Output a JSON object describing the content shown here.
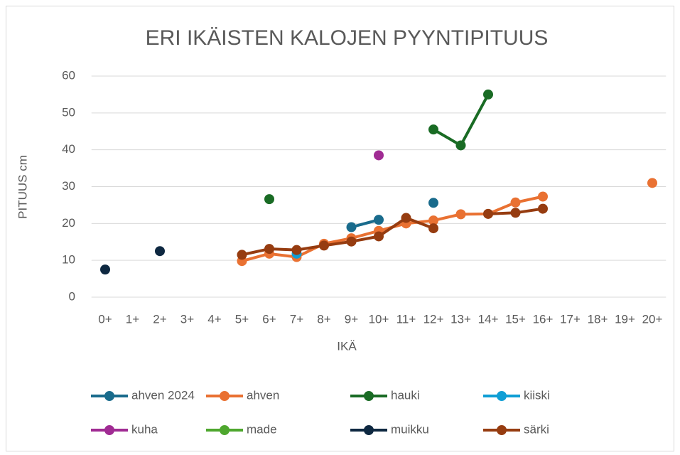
{
  "chart_data": {
    "type": "line",
    "title": "ERI IKÄISTEN KALOJEN PYYNTIPITUUS",
    "x_label": "IKÄ",
    "y_label": "PITUUS cm",
    "categories": [
      "0+",
      "1+",
      "2+",
      "3+",
      "4+",
      "5+",
      "6+",
      "7+",
      "8+",
      "9+",
      "10+",
      "11+",
      "12+",
      "13+",
      "14+",
      "15+",
      "16+",
      "17+",
      "18+",
      "19+",
      "20+"
    ],
    "ylim": [
      0,
      60
    ],
    "yticks": [
      0,
      10,
      20,
      30,
      40,
      50,
      60
    ],
    "grid": true,
    "legend": "bottom",
    "series": [
      {
        "name": "ahven 2024",
        "color": "#196b8c",
        "values": [
          null,
          null,
          null,
          null,
          null,
          null,
          null,
          null,
          null,
          19,
          21,
          null,
          25.6,
          null,
          null,
          null,
          null,
          null,
          null,
          null,
          null
        ]
      },
      {
        "name": "ahven",
        "color": "#e97132",
        "values": [
          null,
          null,
          null,
          null,
          null,
          9.8,
          11.8,
          10.9,
          14.5,
          16,
          18,
          20,
          20.8,
          22.5,
          22.6,
          25.7,
          27.3,
          null,
          null,
          null,
          31
        ]
      },
      {
        "name": "hauki",
        "color": "#196b24",
        "values": [
          null,
          null,
          null,
          null,
          null,
          null,
          26.6,
          null,
          null,
          null,
          null,
          null,
          45.5,
          41.2,
          55,
          null,
          null,
          null,
          null,
          null,
          null
        ]
      },
      {
        "name": "kiiski",
        "color": "#0f9ed5",
        "values": [
          null,
          null,
          null,
          null,
          null,
          null,
          null,
          11.8,
          null,
          null,
          null,
          null,
          null,
          null,
          null,
          null,
          null,
          null,
          null,
          null,
          null
        ]
      },
      {
        "name": "kuha",
        "color": "#a02b93",
        "values": [
          null,
          null,
          null,
          null,
          null,
          null,
          null,
          null,
          null,
          null,
          38.5,
          null,
          null,
          null,
          null,
          null,
          null,
          null,
          null,
          null,
          null
        ]
      },
      {
        "name": "made",
        "color": "#4ea72e",
        "values": [
          null,
          null,
          null,
          null,
          null,
          null,
          null,
          null,
          null,
          null,
          null,
          null,
          null,
          null,
          null,
          null,
          null,
          null,
          null,
          null,
          null
        ]
      },
      {
        "name": "muikku",
        "color": "#0e2841",
        "values": [
          7.5,
          null,
          12.5,
          null,
          null,
          null,
          null,
          null,
          null,
          null,
          null,
          null,
          null,
          null,
          null,
          null,
          null,
          null,
          null,
          null,
          null
        ]
      },
      {
        "name": "särki",
        "color": "#963c10",
        "values": [
          null,
          null,
          null,
          null,
          null,
          11.5,
          13.1,
          12.8,
          14,
          15.1,
          16.5,
          21.5,
          18.7,
          null,
          22.6,
          22.9,
          24,
          null,
          null,
          null,
          null
        ]
      }
    ]
  }
}
